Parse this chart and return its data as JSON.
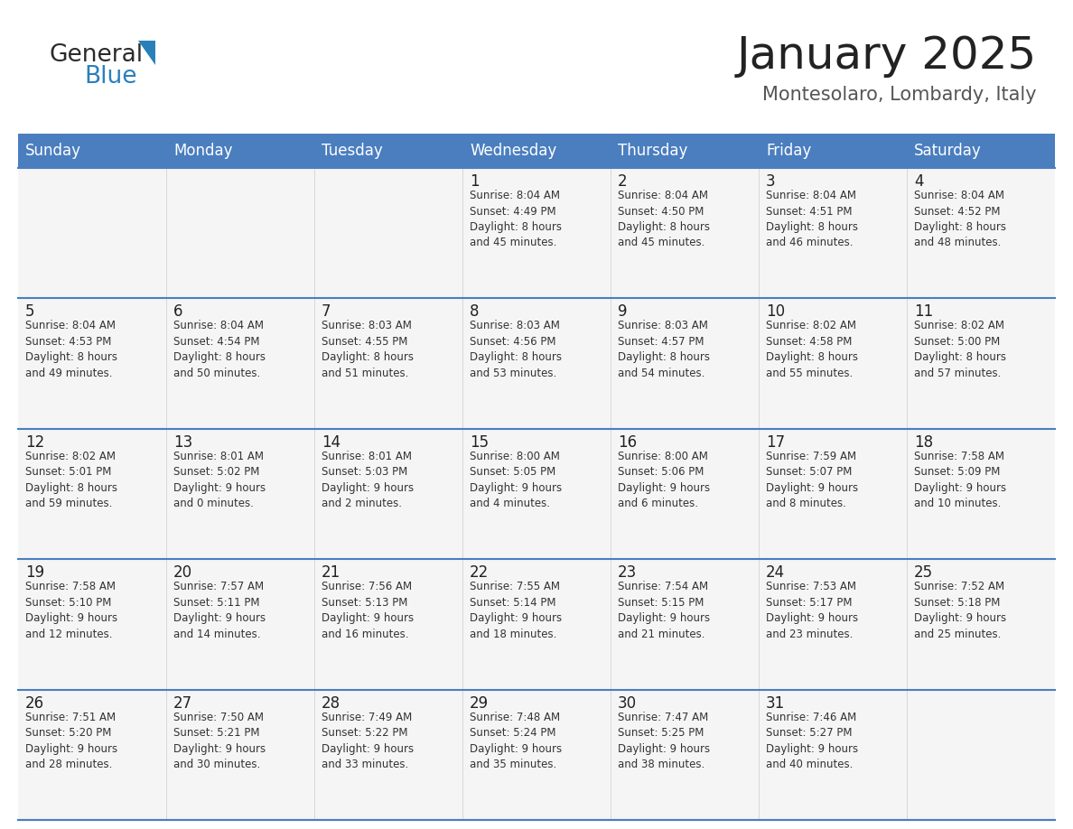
{
  "title": "January 2025",
  "subtitle": "Montesolaro, Lombardy, Italy",
  "header_color": "#4a7ebf",
  "header_text_color": "#FFFFFF",
  "border_color": "#4a7ebf",
  "cell_bg": "#F5F5F5",
  "day_headers": [
    "Sunday",
    "Monday",
    "Tuesday",
    "Wednesday",
    "Thursday",
    "Friday",
    "Saturday"
  ],
  "weeks": [
    [
      {
        "day": null,
        "info": null
      },
      {
        "day": null,
        "info": null
      },
      {
        "day": null,
        "info": null
      },
      {
        "day": 1,
        "info": "Sunrise: 8:04 AM\nSunset: 4:49 PM\nDaylight: 8 hours\nand 45 minutes."
      },
      {
        "day": 2,
        "info": "Sunrise: 8:04 AM\nSunset: 4:50 PM\nDaylight: 8 hours\nand 45 minutes."
      },
      {
        "day": 3,
        "info": "Sunrise: 8:04 AM\nSunset: 4:51 PM\nDaylight: 8 hours\nand 46 minutes."
      },
      {
        "day": 4,
        "info": "Sunrise: 8:04 AM\nSunset: 4:52 PM\nDaylight: 8 hours\nand 48 minutes."
      }
    ],
    [
      {
        "day": 5,
        "info": "Sunrise: 8:04 AM\nSunset: 4:53 PM\nDaylight: 8 hours\nand 49 minutes."
      },
      {
        "day": 6,
        "info": "Sunrise: 8:04 AM\nSunset: 4:54 PM\nDaylight: 8 hours\nand 50 minutes."
      },
      {
        "day": 7,
        "info": "Sunrise: 8:03 AM\nSunset: 4:55 PM\nDaylight: 8 hours\nand 51 minutes."
      },
      {
        "day": 8,
        "info": "Sunrise: 8:03 AM\nSunset: 4:56 PM\nDaylight: 8 hours\nand 53 minutes."
      },
      {
        "day": 9,
        "info": "Sunrise: 8:03 AM\nSunset: 4:57 PM\nDaylight: 8 hours\nand 54 minutes."
      },
      {
        "day": 10,
        "info": "Sunrise: 8:02 AM\nSunset: 4:58 PM\nDaylight: 8 hours\nand 55 minutes."
      },
      {
        "day": 11,
        "info": "Sunrise: 8:02 AM\nSunset: 5:00 PM\nDaylight: 8 hours\nand 57 minutes."
      }
    ],
    [
      {
        "day": 12,
        "info": "Sunrise: 8:02 AM\nSunset: 5:01 PM\nDaylight: 8 hours\nand 59 minutes."
      },
      {
        "day": 13,
        "info": "Sunrise: 8:01 AM\nSunset: 5:02 PM\nDaylight: 9 hours\nand 0 minutes."
      },
      {
        "day": 14,
        "info": "Sunrise: 8:01 AM\nSunset: 5:03 PM\nDaylight: 9 hours\nand 2 minutes."
      },
      {
        "day": 15,
        "info": "Sunrise: 8:00 AM\nSunset: 5:05 PM\nDaylight: 9 hours\nand 4 minutes."
      },
      {
        "day": 16,
        "info": "Sunrise: 8:00 AM\nSunset: 5:06 PM\nDaylight: 9 hours\nand 6 minutes."
      },
      {
        "day": 17,
        "info": "Sunrise: 7:59 AM\nSunset: 5:07 PM\nDaylight: 9 hours\nand 8 minutes."
      },
      {
        "day": 18,
        "info": "Sunrise: 7:58 AM\nSunset: 5:09 PM\nDaylight: 9 hours\nand 10 minutes."
      }
    ],
    [
      {
        "day": 19,
        "info": "Sunrise: 7:58 AM\nSunset: 5:10 PM\nDaylight: 9 hours\nand 12 minutes."
      },
      {
        "day": 20,
        "info": "Sunrise: 7:57 AM\nSunset: 5:11 PM\nDaylight: 9 hours\nand 14 minutes."
      },
      {
        "day": 21,
        "info": "Sunrise: 7:56 AM\nSunset: 5:13 PM\nDaylight: 9 hours\nand 16 minutes."
      },
      {
        "day": 22,
        "info": "Sunrise: 7:55 AM\nSunset: 5:14 PM\nDaylight: 9 hours\nand 18 minutes."
      },
      {
        "day": 23,
        "info": "Sunrise: 7:54 AM\nSunset: 5:15 PM\nDaylight: 9 hours\nand 21 minutes."
      },
      {
        "day": 24,
        "info": "Sunrise: 7:53 AM\nSunset: 5:17 PM\nDaylight: 9 hours\nand 23 minutes."
      },
      {
        "day": 25,
        "info": "Sunrise: 7:52 AM\nSunset: 5:18 PM\nDaylight: 9 hours\nand 25 minutes."
      }
    ],
    [
      {
        "day": 26,
        "info": "Sunrise: 7:51 AM\nSunset: 5:20 PM\nDaylight: 9 hours\nand 28 minutes."
      },
      {
        "day": 27,
        "info": "Sunrise: 7:50 AM\nSunset: 5:21 PM\nDaylight: 9 hours\nand 30 minutes."
      },
      {
        "day": 28,
        "info": "Sunrise: 7:49 AM\nSunset: 5:22 PM\nDaylight: 9 hours\nand 33 minutes."
      },
      {
        "day": 29,
        "info": "Sunrise: 7:48 AM\nSunset: 5:24 PM\nDaylight: 9 hours\nand 35 minutes."
      },
      {
        "day": 30,
        "info": "Sunrise: 7:47 AM\nSunset: 5:25 PM\nDaylight: 9 hours\nand 38 minutes."
      },
      {
        "day": 31,
        "info": "Sunrise: 7:46 AM\nSunset: 5:27 PM\nDaylight: 9 hours\nand 40 minutes."
      },
      {
        "day": null,
        "info": null
      }
    ]
  ],
  "logo_general_color": "#2b2b2b",
  "logo_blue_color": "#2980b9",
  "title_fontsize": 36,
  "subtitle_fontsize": 15,
  "header_fontsize": 12,
  "day_num_fontsize": 12,
  "cell_text_fontsize": 8.5
}
